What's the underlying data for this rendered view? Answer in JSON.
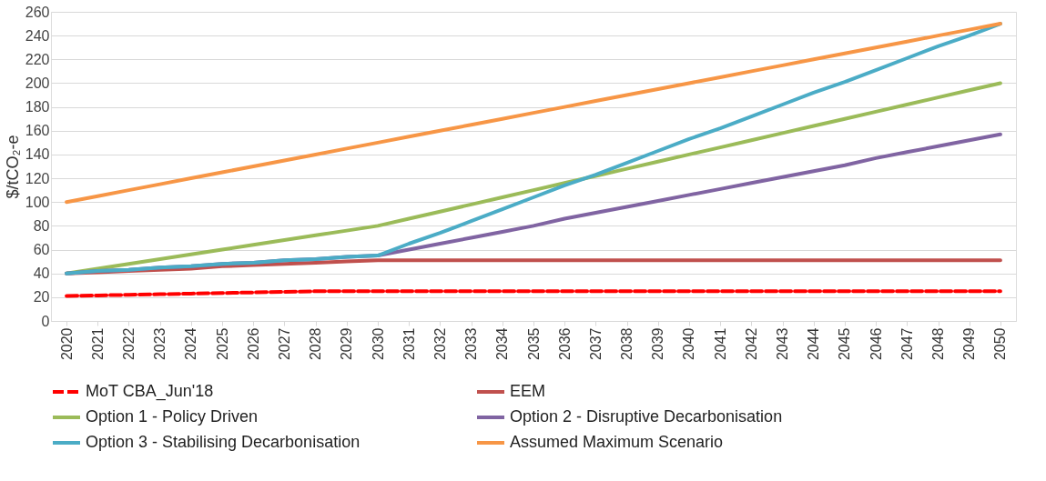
{
  "chart_data": {
    "type": "line",
    "ylabel": "$/tCO₂-e",
    "categories": [
      "2020",
      "2021",
      "2022",
      "2023",
      "2024",
      "2025",
      "2026",
      "2027",
      "2028",
      "2029",
      "2030",
      "2031",
      "2032",
      "2033",
      "2034",
      "2035",
      "2036",
      "2037",
      "2038",
      "2039",
      "2040",
      "2041",
      "2042",
      "2043",
      "2044",
      "2045",
      "2046",
      "2047",
      "2048",
      "2049",
      "2050"
    ],
    "ylim": [
      0,
      260
    ],
    "yticks": [
      0,
      20,
      40,
      60,
      80,
      100,
      120,
      140,
      160,
      180,
      200,
      220,
      240,
      260
    ],
    "grid": "y",
    "legend": "bottom",
    "marker": "none",
    "series": [
      {
        "name": "MoT CBA_Jun'18",
        "color": "#ff0000",
        "line_style": "dashed",
        "values": [
          21,
          21.5,
          22,
          22.5,
          23,
          23.5,
          24,
          24.5,
          25,
          25,
          25,
          25,
          25,
          25,
          25,
          25,
          25,
          25,
          25,
          25,
          25,
          25,
          25,
          25,
          25,
          25,
          25,
          25,
          25,
          25,
          25
        ]
      },
      {
        "name": "EEM",
        "color": "#c0504d",
        "line_style": "solid",
        "values": [
          40,
          41,
          42,
          43,
          44,
          46,
          47,
          48,
          49,
          50,
          51,
          51,
          51,
          51,
          51,
          51,
          51,
          51,
          51,
          51,
          51,
          51,
          51,
          51,
          51,
          51,
          51,
          51,
          51,
          51,
          51
        ]
      },
      {
        "name": "Option 1 - Policy Driven",
        "color": "#9bbb59",
        "line_style": "solid",
        "values": [
          40,
          44,
          48,
          52,
          56,
          60,
          64,
          68,
          72,
          76,
          80,
          86,
          92,
          98,
          104,
          110,
          116,
          122,
          128,
          134,
          140,
          146,
          152,
          158,
          164,
          170,
          176,
          182,
          188,
          194,
          200
        ]
      },
      {
        "name": "Option 2 - Disruptive Decarbonisation",
        "color": "#8064a2",
        "line_style": "solid",
        "values": [
          40,
          42,
          43,
          45,
          46,
          48,
          49,
          51,
          52,
          54,
          55,
          60,
          65,
          70,
          75,
          80,
          86,
          91,
          96,
          101,
          106,
          111,
          116,
          121,
          126,
          131,
          137,
          142,
          147,
          152,
          157
        ]
      },
      {
        "name": "Option 3 - Stabilising Decarbonisation",
        "color": "#4bacc6",
        "line_style": "solid",
        "values": [
          40,
          42,
          43,
          45,
          46,
          48,
          49,
          51,
          52,
          54,
          55,
          65,
          74,
          84,
          94,
          104,
          114,
          123,
          133,
          143,
          153,
          162,
          172,
          182,
          192,
          201,
          211,
          221,
          231,
          240,
          250
        ]
      },
      {
        "name": "Assumed Maximum Scenario",
        "color": "#f79646",
        "line_style": "solid",
        "values": [
          100,
          105,
          110,
          115,
          120,
          125,
          130,
          135,
          140,
          145,
          150,
          155,
          160,
          165,
          170,
          175,
          180,
          185,
          190,
          195,
          200,
          205,
          210,
          215,
          220,
          225,
          230,
          235,
          240,
          245,
          250
        ]
      }
    ]
  }
}
